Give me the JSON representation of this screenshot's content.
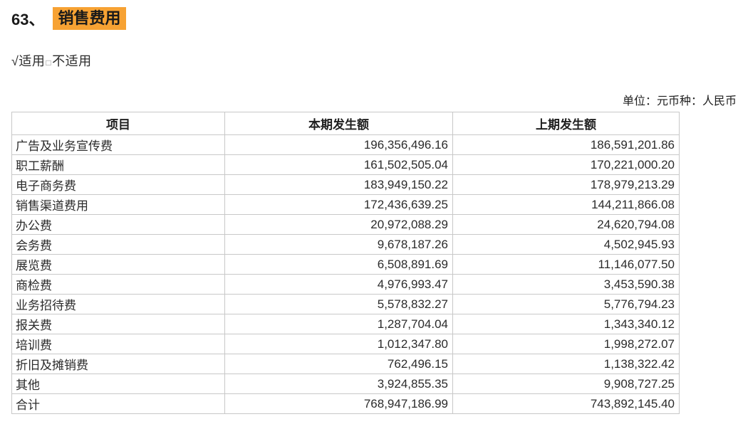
{
  "heading": {
    "number": "63、",
    "title": "销售费用",
    "highlight_color": "#F7A233"
  },
  "applicability": {
    "check_applicable": "√适用",
    "box_icon": "□",
    "not_applicable": "不适用"
  },
  "unit_note": "单位：元币种：人民币",
  "table": {
    "columns": [
      "项目",
      "本期发生额",
      "上期发生额"
    ],
    "rows": [
      [
        "广告及业务宣传费",
        "196,356,496.16",
        "186,591,201.86"
      ],
      [
        "职工薪酬",
        "161,502,505.04",
        "170,221,000.20"
      ],
      [
        "电子商务费",
        "183,949,150.22",
        "178,979,213.29"
      ],
      [
        "销售渠道费用",
        "172,436,639.25",
        "144,211,866.08"
      ],
      [
        "办公费",
        "20,972,088.29",
        "24,620,794.08"
      ],
      [
        "会务费",
        "9,678,187.26",
        "4,502,945.93"
      ],
      [
        "展览费",
        "6,508,891.69",
        "11,146,077.50"
      ],
      [
        "商检费",
        "4,976,993.47",
        "3,453,590.38"
      ],
      [
        "业务招待费",
        "5,578,832.27",
        "5,776,794.23"
      ],
      [
        "报关费",
        "1,287,704.04",
        "1,343,340.12"
      ],
      [
        "培训费",
        "1,012,347.80",
        "1,998,272.07"
      ],
      [
        "折旧及摊销费",
        "762,496.15",
        "1,138,322.42"
      ],
      [
        "其他",
        "3,924,855.35",
        "9,908,727.25"
      ]
    ],
    "total_row": [
      "合计",
      "768,947,186.99",
      "743,892,145.40"
    ]
  }
}
